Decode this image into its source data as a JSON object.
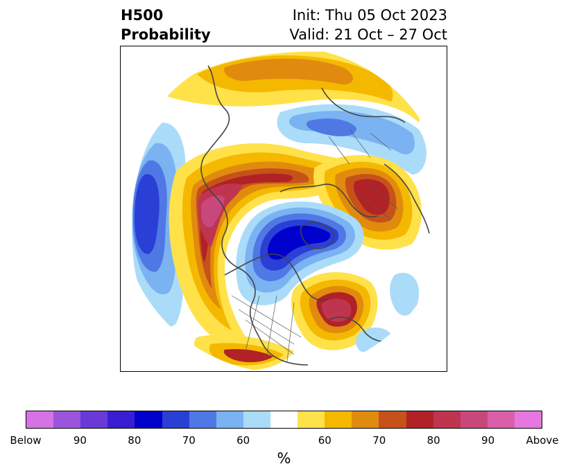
{
  "title": {
    "left_line1": "H500",
    "left_line2": "Probability",
    "right_line1": "Init: Thu 05 Oct 2023",
    "right_line2": "Valid: 21 Oct – 27 Oct"
  },
  "colorbar": {
    "colors": [
      "#d672e6",
      "#9b55dd",
      "#6a39d6",
      "#3a1fd2",
      "#0000cc",
      "#2a3fd6",
      "#4f78e4",
      "#7ab2f2",
      "#aadcf9",
      "#ffffff",
      "#ffe14a",
      "#f5b800",
      "#e08b0e",
      "#c6521a",
      "#b12227",
      "#bf3550",
      "#c9487b",
      "#da5fa8",
      "#e677df"
    ],
    "tick_labels": [
      "Below",
      "90",
      "80",
      "70",
      "60",
      "60",
      "70",
      "80",
      "90",
      "Above"
    ],
    "unit": "%"
  },
  "palette": {
    "coast": "#444444",
    "border": "#555555"
  }
}
